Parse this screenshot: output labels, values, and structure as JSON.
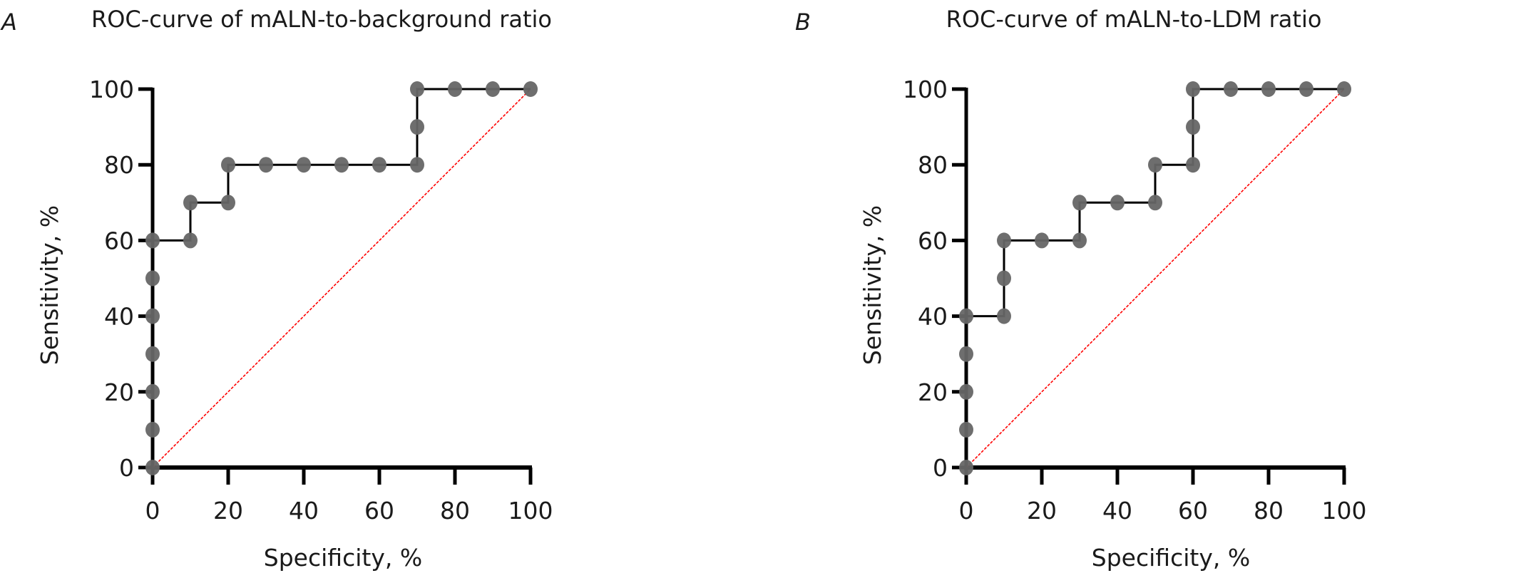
{
  "chart_data": [
    {
      "type": "line",
      "panel_label": "A",
      "title": "ROC-curve of mALN-to-background ratio",
      "xlabel": "Specificity, %",
      "ylabel": "Sensitivity, %",
      "xlim": [
        0,
        100
      ],
      "ylim": [
        0,
        100
      ],
      "xticks": [
        0,
        20,
        40,
        60,
        80,
        100
      ],
      "yticks": [
        0,
        20,
        40,
        60,
        80,
        100
      ],
      "grid": false,
      "series": [
        {
          "name": "ROC curve",
          "style": "step-with-markers",
          "color": "#000000",
          "marker_color": "#666666",
          "x": [
            0,
            0,
            0,
            0,
            0,
            0,
            0,
            10,
            10,
            20,
            20,
            30,
            40,
            50,
            60,
            70,
            70,
            70,
            80,
            90,
            100
          ],
          "y": [
            0,
            10,
            20,
            30,
            40,
            50,
            60,
            60,
            70,
            70,
            80,
            80,
            80,
            80,
            80,
            80,
            90,
            100,
            100,
            100,
            100
          ]
        },
        {
          "name": "Reference line",
          "style": "dashed",
          "color": "#ff0000",
          "x": [
            0,
            100
          ],
          "y": [
            0,
            100
          ]
        }
      ]
    },
    {
      "type": "line",
      "panel_label": "B",
      "title": "ROC-curve of mALN-to-LDM ratio",
      "xlabel": "Specificity, %",
      "ylabel": "Sensitivity, %",
      "xlim": [
        0,
        100
      ],
      "ylim": [
        0,
        100
      ],
      "xticks": [
        0,
        20,
        40,
        60,
        80,
        100
      ],
      "yticks": [
        0,
        20,
        40,
        60,
        80,
        100
      ],
      "grid": false,
      "series": [
        {
          "name": "ROC curve",
          "style": "step-with-markers",
          "color": "#000000",
          "marker_color": "#666666",
          "x": [
            0,
            0,
            0,
            0,
            0,
            10,
            10,
            10,
            20,
            30,
            30,
            40,
            50,
            50,
            60,
            60,
            60,
            70,
            80,
            90,
            100
          ],
          "y": [
            0,
            10,
            20,
            30,
            40,
            40,
            50,
            60,
            60,
            60,
            70,
            70,
            70,
            80,
            80,
            90,
            100,
            100,
            100,
            100,
            100
          ]
        },
        {
          "name": "Reference line",
          "style": "dashed",
          "color": "#ff0000",
          "x": [
            0,
            100
          ],
          "y": [
            0,
            100
          ]
        }
      ]
    }
  ]
}
